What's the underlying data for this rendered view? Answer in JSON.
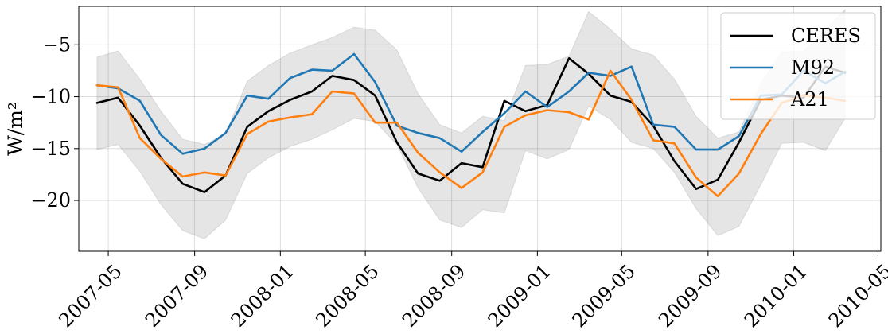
{
  "chart_data": {
    "type": "line",
    "title": "",
    "xlabel": "",
    "ylabel": "W/m²",
    "xlim": [
      "2007-03-20",
      "2010-05-05"
    ],
    "ylim": [
      -24.9,
      -1.3
    ],
    "x_ticks": [
      "2007-05",
      "2007-09",
      "2008-01",
      "2008-05",
      "2008-09",
      "2009-01",
      "2009-05",
      "2009-09",
      "2010-01",
      "2010-05"
    ],
    "y_ticks": [
      -5,
      -10,
      -15,
      -20
    ],
    "y_tick_labels": [
      "−5",
      "−10",
      "−15",
      "−20"
    ],
    "grid": true,
    "legend_position": "top-right",
    "x": [
      "2007-04-15",
      "2007-05-15",
      "2007-06-15",
      "2007-07-15",
      "2007-08-15",
      "2007-09-15",
      "2007-10-15",
      "2007-11-15",
      "2007-12-15",
      "2008-01-15",
      "2008-02-15",
      "2008-03-15",
      "2008-04-15",
      "2008-05-15",
      "2008-06-15",
      "2008-07-15",
      "2008-08-15",
      "2008-09-15",
      "2008-10-15",
      "2008-11-15",
      "2008-12-15",
      "2009-01-15",
      "2009-02-15",
      "2009-03-15",
      "2009-04-15",
      "2009-05-15",
      "2009-06-15",
      "2009-07-15",
      "2009-08-15",
      "2009-09-15",
      "2009-10-15",
      "2009-11-15",
      "2009-12-15",
      "2010-01-15",
      "2010-02-15",
      "2010-03-15"
    ],
    "band": {
      "upper": [
        -6.2,
        -5.6,
        -8.3,
        -11.4,
        -14.1,
        -14.6,
        -13.6,
        -8.5,
        -7.0,
        -5.8,
        -5.0,
        -4.3,
        -3.3,
        -3.6,
        -5.5,
        -9.7,
        -12.7,
        -13.5,
        -11.9,
        -12.3,
        -7.0,
        -6.9,
        -6.1,
        -1.8,
        -3.5,
        -5.4,
        -6.0,
        -8.3,
        -11.9,
        -14.0,
        -13.4,
        -8.7,
        -5.7,
        -5.6,
        -3.6,
        -1.6
      ],
      "lower": [
        -15.1,
        -14.6,
        -17.2,
        -20.4,
        -22.9,
        -23.7,
        -21.9,
        -17.4,
        -15.9,
        -14.8,
        -14.1,
        -13.2,
        -12.1,
        -12.4,
        -14.6,
        -18.8,
        -21.9,
        -22.6,
        -20.9,
        -21.2,
        -15.2,
        -16.0,
        -15.1,
        -10.9,
        -12.2,
        -14.4,
        -15.0,
        -17.3,
        -20.8,
        -23.4,
        -22.5,
        -18.5,
        -14.5,
        -14.4,
        -15.2,
        -12.1
      ]
    },
    "series": [
      {
        "name": "CERES",
        "color": "#000000",
        "values": [
          -10.6,
          -10.1,
          -12.8,
          -15.9,
          -18.4,
          -19.2,
          -17.6,
          -12.9,
          -11.4,
          -10.3,
          -9.5,
          -8.0,
          -8.4,
          -9.9,
          -14.4,
          -17.4,
          -18.1,
          -16.4,
          -16.8,
          -10.4,
          -11.4,
          -10.8,
          -6.3,
          -7.8,
          -9.9,
          -10.5,
          -12.8,
          -16.2,
          -18.9,
          -18.0,
          -14.4,
          -10.3,
          -9.9,
          -10.1,
          -7.1,
          -7.7
        ]
      },
      {
        "name": "M92",
        "color": "#1f77b4",
        "values": [
          -8.9,
          -9.2,
          -10.4,
          -13.7,
          -15.5,
          -15.0,
          -13.5,
          -9.9,
          -10.2,
          -8.2,
          -7.4,
          -7.5,
          -5.9,
          -8.6,
          -12.8,
          -13.5,
          -14.0,
          -15.3,
          -13.4,
          -11.6,
          -9.5,
          -11.0,
          -9.5,
          -7.7,
          -8.0,
          -7.1,
          -12.7,
          -12.9,
          -15.1,
          -15.1,
          -13.8,
          -9.9,
          -9.8,
          -7.5,
          -8.7,
          -7.6
        ]
      },
      {
        "name": "A21",
        "color": "#ff7f0e",
        "values": [
          -8.9,
          -9.1,
          -14.0,
          -16.0,
          -17.7,
          -17.3,
          -17.6,
          -13.6,
          -12.4,
          -12.0,
          -11.7,
          -9.5,
          -9.7,
          -12.5,
          -12.5,
          -15.4,
          -17.3,
          -18.8,
          -17.3,
          -12.9,
          -11.8,
          -11.3,
          -11.5,
          -12.2,
          -7.5,
          -10.3,
          -14.2,
          -14.5,
          -17.8,
          -19.6,
          -17.4,
          -13.6,
          -10.6,
          -9.9,
          -10.1,
          -10.4
        ]
      }
    ]
  }
}
